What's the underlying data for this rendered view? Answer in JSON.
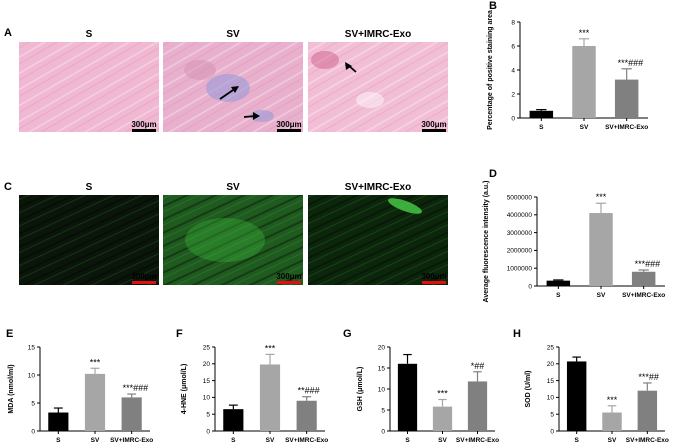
{
  "panels": {
    "A": {
      "label": "A",
      "titles": [
        "S",
        "SV",
        "SV+IMRC-Exo"
      ],
      "scale_label": "300μm",
      "scale_color": "#000000",
      "bg_colors": [
        "#f0b8d2",
        "#e8b0cc",
        "#f2bed6"
      ],
      "accent_colors": [
        "#ffd3e6",
        "#9a9ad8",
        "#c23a6a"
      ]
    },
    "C": {
      "label": "C",
      "titles": [
        "S",
        "SV",
        "SV+IMRC-Exo"
      ],
      "scale_label": "300μm",
      "scale_color": "#e01010",
      "bg_colors": [
        "#0a160a",
        "#1f5a1f",
        "#0c260c"
      ],
      "accent_colors": [
        "#1d3a1d",
        "#3cc03c",
        "#4ad04a"
      ]
    }
  },
  "chart_data": [
    {
      "id": "B",
      "label": "B",
      "type": "bar",
      "categories": [
        "S",
        "SV",
        "SV+IMRC-Exo"
      ],
      "values": [
        0.6,
        6.0,
        3.2
      ],
      "errors": [
        0.1,
        0.6,
        0.9
      ],
      "ylabel": "Percentage of positive staining area",
      "ylim": [
        0,
        8
      ],
      "yticks": [
        0,
        2,
        4,
        6,
        8
      ],
      "ytick_labels": [
        "0",
        "2",
        "4",
        "6",
        "8"
      ],
      "annotations": [
        "",
        "***",
        "***###"
      ],
      "colors": [
        "#000000",
        "#a6a6a6",
        "#808080"
      ]
    },
    {
      "id": "D",
      "label": "D",
      "type": "bar",
      "categories": [
        "S",
        "SV",
        "SV+IMRC-Exo"
      ],
      "values": [
        300000,
        4100000,
        800000
      ],
      "errors": [
        40000,
        550000,
        100000
      ],
      "ylabel": "Average fluorescence intensity (a.u.)",
      "ylim": [
        0,
        5000000
      ],
      "yticks": [
        0,
        1000000,
        2000000,
        3000000,
        4000000,
        5000000
      ],
      "ytick_labels": [
        "0",
        "1000000",
        "2000000",
        "3000000",
        "4000000",
        "5000000"
      ],
      "annotations": [
        "",
        "***",
        "***###"
      ],
      "colors": [
        "#000000",
        "#a6a6a6",
        "#808080"
      ]
    },
    {
      "id": "E",
      "label": "E",
      "type": "bar",
      "categories": [
        "S",
        "SV",
        "SV+IMRC-Exo"
      ],
      "values": [
        3.3,
        10.2,
        6.0
      ],
      "errors": [
        0.8,
        1.0,
        0.6
      ],
      "ylabel": "MDA (nmol/ml)",
      "ylim": [
        0,
        15
      ],
      "yticks": [
        0,
        5,
        10,
        15
      ],
      "ytick_labels": [
        "0",
        "5",
        "10",
        "15"
      ],
      "annotations": [
        "",
        "***",
        "***###"
      ],
      "colors": [
        "#000000",
        "#a6a6a6",
        "#808080"
      ]
    },
    {
      "id": "F",
      "label": "F",
      "type": "bar",
      "categories": [
        "S",
        "SV",
        "SV+IMRC-Exo"
      ],
      "values": [
        6.5,
        19.8,
        9.0
      ],
      "errors": [
        1.2,
        3.0,
        1.2
      ],
      "ylabel": "4-HNE (μmol/L)",
      "ylim": [
        0,
        25
      ],
      "yticks": [
        0,
        5,
        10,
        15,
        20,
        25
      ],
      "ytick_labels": [
        "0",
        "5",
        "10",
        "15",
        "20",
        "25"
      ],
      "annotations": [
        "",
        "***",
        "**###"
      ],
      "colors": [
        "#000000",
        "#a6a6a6",
        "#808080"
      ]
    },
    {
      "id": "G",
      "label": "G",
      "type": "bar",
      "categories": [
        "S",
        "SV",
        "SV+IMRC-Exo"
      ],
      "values": [
        16.0,
        5.8,
        11.8
      ],
      "errors": [
        2.2,
        1.7,
        2.3
      ],
      "ylabel": "GSH (μmol/L)",
      "ylim": [
        0,
        20
      ],
      "yticks": [
        0,
        5,
        10,
        15,
        20
      ],
      "ytick_labels": [
        "0",
        "5",
        "10",
        "15",
        "20"
      ],
      "annotations": [
        "",
        "***",
        "*##"
      ],
      "colors": [
        "#000000",
        "#a6a6a6",
        "#808080"
      ]
    },
    {
      "id": "H",
      "label": "H",
      "type": "bar",
      "categories": [
        "S",
        "SV",
        "SV+IMRC-Exo"
      ],
      "values": [
        20.7,
        5.5,
        12.0
      ],
      "errors": [
        1.3,
        2.0,
        2.3
      ],
      "ylabel": "SOD (U/ml)",
      "ylim": [
        0,
        25
      ],
      "yticks": [
        0,
        5,
        10,
        15,
        20,
        25
      ],
      "ytick_labels": [
        "0",
        "5",
        "10",
        "15",
        "20",
        "25"
      ],
      "annotations": [
        "",
        "***",
        "***##"
      ],
      "colors": [
        "#000000",
        "#a6a6a6",
        "#808080"
      ]
    }
  ]
}
